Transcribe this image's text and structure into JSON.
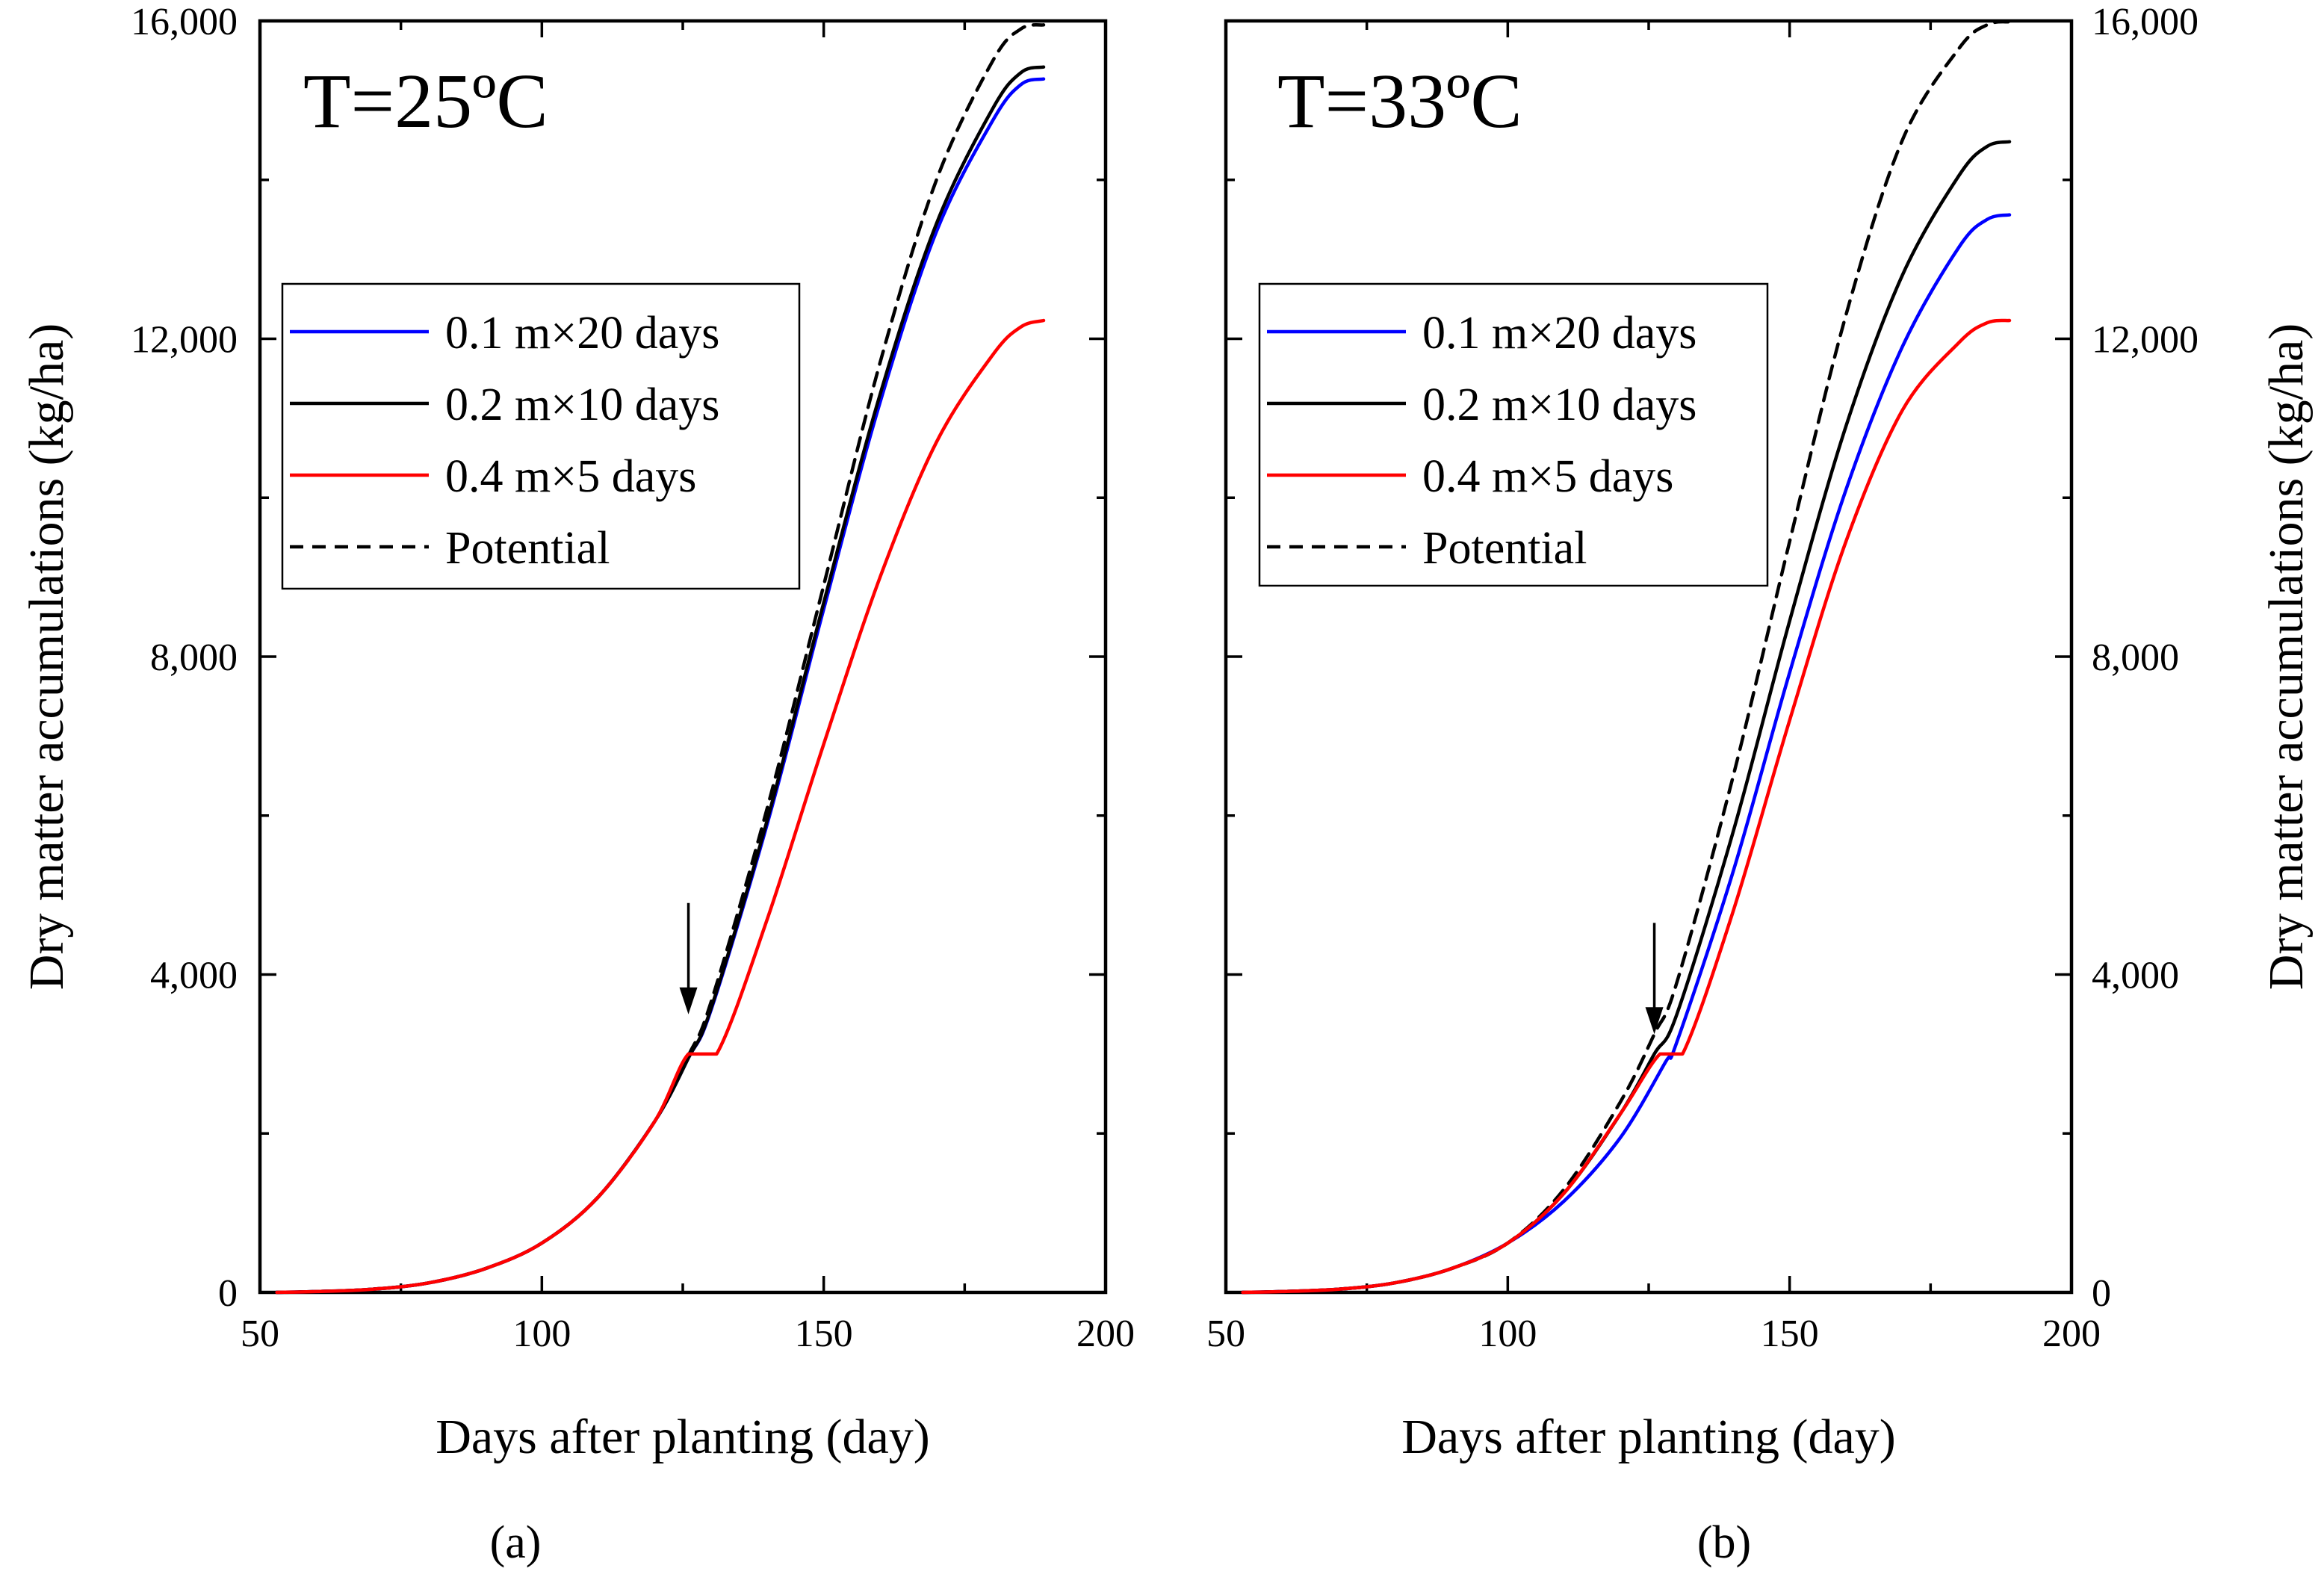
{
  "chart_data": [
    {
      "type": "line",
      "panel_label": "(a)",
      "title": "T=25ºC",
      "xlabel": "Days after planting (day)",
      "ylabel": "Dry matter accumulations (kg/ha)",
      "xlim": [
        50,
        200
      ],
      "ylim": [
        0,
        16000
      ],
      "xticks": [
        50,
        100,
        150,
        200
      ],
      "yticks": [
        0,
        4000,
        8000,
        12000,
        16000
      ],
      "xtick_labels": [
        "50",
        "100",
        "150",
        "200"
      ],
      "ytick_labels": [
        "0",
        "4,000",
        "8,000",
        "12,000",
        "16,000"
      ],
      "yaxis_side": "left",
      "legend_position": "upper-left",
      "arrow": {
        "x": 126,
        "y_from": 4900,
        "y_to": 3500
      },
      "series": [
        {
          "name": "0.1 m×20 days",
          "color": "#0000ff",
          "dash": "solid",
          "x": [
            53,
            60,
            70,
            80,
            90,
            100,
            110,
            120,
            126,
            130,
            140,
            150,
            160,
            170,
            180,
            185,
            189
          ],
          "y": [
            0,
            10,
            40,
            120,
            300,
            620,
            1200,
            2150,
            2950,
            3550,
            5900,
            8600,
            11200,
            13350,
            14750,
            15200,
            15270
          ]
        },
        {
          "name": "0.2 m×10 days",
          "color": "#000000",
          "dash": "solid",
          "x": [
            53,
            60,
            70,
            80,
            90,
            100,
            110,
            120,
            126,
            130,
            140,
            150,
            160,
            170,
            180,
            185,
            189
          ],
          "y": [
            0,
            10,
            40,
            120,
            300,
            620,
            1200,
            2150,
            2950,
            3570,
            5950,
            8680,
            11300,
            13450,
            14900,
            15350,
            15420
          ]
        },
        {
          "name": "0.4 m×5 days",
          "color": "#ff0000",
          "dash": "solid",
          "x": [
            53,
            60,
            70,
            80,
            90,
            100,
            110,
            120,
            126,
            131,
            140,
            150,
            160,
            170,
            180,
            185,
            189
          ],
          "y": [
            0,
            10,
            40,
            120,
            300,
            620,
            1200,
            2150,
            3000,
            3000,
            4700,
            6900,
            9000,
            10700,
            11800,
            12150,
            12230
          ]
        },
        {
          "name": "Potential",
          "color": "#000000",
          "dash": "dashed",
          "x": [
            53,
            60,
            70,
            80,
            90,
            100,
            110,
            120,
            126,
            130,
            140,
            150,
            160,
            170,
            180,
            185,
            189
          ],
          "y": [
            0,
            10,
            40,
            120,
            300,
            620,
            1200,
            2150,
            2980,
            3650,
            6100,
            8900,
            11700,
            14000,
            15500,
            15900,
            15950
          ]
        }
      ]
    },
    {
      "type": "line",
      "panel_label": "(b)",
      "title": "T=33ºC",
      "xlabel": "Days after planting (day)",
      "ylabel": "Dry matter accumulations (kg/ha)",
      "xlim": [
        50,
        200
      ],
      "ylim": [
        0,
        16000
      ],
      "xticks": [
        50,
        100,
        150,
        200
      ],
      "yticks": [
        0,
        4000,
        8000,
        12000,
        16000
      ],
      "xtick_labels": [
        "50",
        "100",
        "150",
        "200"
      ],
      "ytick_labels": [
        "0",
        "4,000",
        "8,000",
        "12,000",
        "16,000"
      ],
      "yaxis_side": "right",
      "legend_position": "upper-left",
      "arrow": {
        "x": 126,
        "y_from": 4650,
        "y_to": 3250
      },
      "series": [
        {
          "name": "0.1 m×20 days",
          "color": "#0000ff",
          "dash": "solid",
          "x": [
            53,
            60,
            70,
            80,
            90,
            100,
            110,
            120,
            128,
            130,
            140,
            150,
            160,
            170,
            180,
            185,
            189
          ],
          "y": [
            0,
            10,
            40,
            120,
            300,
            620,
            1150,
            1950,
            2900,
            3150,
            5300,
            7800,
            10100,
            11900,
            13150,
            13500,
            13560
          ]
        },
        {
          "name": "0.2 m×10 days",
          "color": "#000000",
          "dash": "solid",
          "x": [
            53,
            60,
            70,
            80,
            90,
            100,
            110,
            120,
            126,
            130,
            140,
            150,
            160,
            170,
            180,
            185,
            189
          ],
          "y": [
            0,
            10,
            40,
            120,
            300,
            620,
            1250,
            2250,
            3000,
            3500,
            5800,
            8450,
            10900,
            12800,
            14050,
            14420,
            14480
          ]
        },
        {
          "name": "0.4 m×5 days",
          "color": "#ff0000",
          "dash": "solid",
          "x": [
            53,
            60,
            70,
            80,
            90,
            100,
            110,
            120,
            127,
            131,
            140,
            150,
            160,
            170,
            180,
            185,
            189
          ],
          "y": [
            0,
            10,
            40,
            120,
            300,
            620,
            1250,
            2250,
            3000,
            3000,
            4800,
            7200,
            9450,
            11100,
            11950,
            12200,
            12230
          ]
        },
        {
          "name": "Potential",
          "color": "#000000",
          "dash": "dashed",
          "x": [
            53,
            60,
            70,
            80,
            90,
            100,
            110,
            120,
            126,
            130,
            140,
            150,
            160,
            170,
            180,
            185,
            189
          ],
          "y": [
            0,
            10,
            40,
            120,
            300,
            620,
            1300,
            2400,
            3250,
            3900,
            6500,
            9450,
            12300,
            14500,
            15650,
            15950,
            15990
          ]
        }
      ]
    }
  ]
}
